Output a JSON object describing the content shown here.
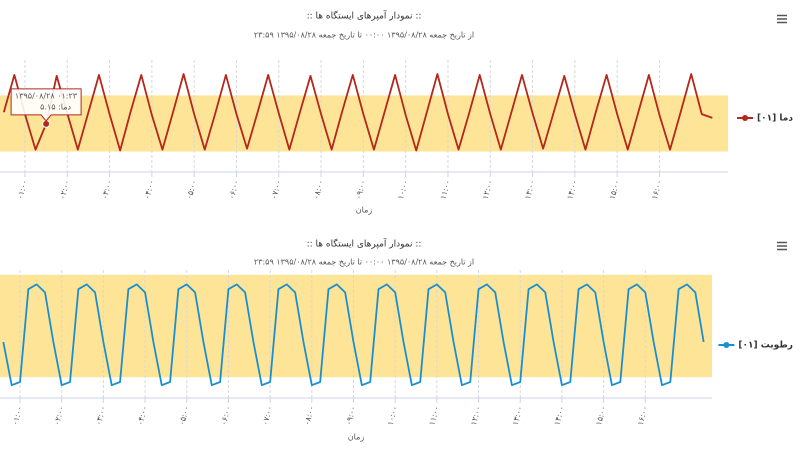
{
  "chart_data": [
    {
      "type": "line",
      "title": ":: نمودار آمپرهای ایستگاه ها ::",
      "subtitle": "از تاریخ جمعه ۱۳۹۵/۰۸/۲۸ ۰۰:۰۰ تا تاریخ جمعه ۱۳۹۵/۰۸/۲۸ ۲۳:۵۹",
      "x_title": "زمان",
      "xlim": [
        0.41,
        17.62
      ],
      "ylim": [
        0,
        12
      ],
      "grid": true,
      "xticks": [
        {
          "value": 1,
          "label": "۰۱:۰۰"
        },
        {
          "value": 2,
          "label": "۰۲:۰۰"
        },
        {
          "value": 3,
          "label": "۰۳:۰۰"
        },
        {
          "value": 4,
          "label": "۰۴:۰۰"
        },
        {
          "value": 5,
          "label": "۰۵:۰۰"
        },
        {
          "value": 6,
          "label": "۰۶:۰۰"
        },
        {
          "value": 7,
          "label": "۰۷:۰۰"
        },
        {
          "value": 8,
          "label": "۰۸:۰۰"
        },
        {
          "value": 9,
          "label": "۰۹:۰۰"
        },
        {
          "value": 10,
          "label": "۱۰:۰۰"
        },
        {
          "value": 11,
          "label": "۱۱:۰۰"
        },
        {
          "value": 12,
          "label": "۱۲:۰۰"
        },
        {
          "value": 13,
          "label": "۱۳:۰۰"
        },
        {
          "value": 14,
          "label": "۱۴:۰۰"
        },
        {
          "value": 15,
          "label": "۱۵:۰۰"
        },
        {
          "value": 16,
          "label": "۱۶:۰۰"
        }
      ],
      "plot_band": {
        "from": 2.2,
        "to": 8.2,
        "color": "#fde496"
      },
      "x": [
        0.5,
        0.75,
        1,
        1.25,
        1.5,
        1.75,
        2,
        2.25,
        2.5,
        2.75,
        3,
        3.25,
        3.5,
        3.75,
        4,
        4.25,
        4.5,
        4.75,
        5,
        5.25,
        5.5,
        5.75,
        6,
        6.25,
        6.5,
        6.75,
        7,
        7.25,
        7.5,
        7.75,
        8,
        8.25,
        8.5,
        8.75,
        9,
        9.25,
        9.5,
        9.75,
        10,
        10.25,
        10.5,
        10.75,
        11,
        11.25,
        11.5,
        11.75,
        12,
        12.25,
        12.5,
        12.75,
        13,
        13.25,
        13.5,
        13.75,
        14,
        14.25,
        14.5,
        14.75,
        15,
        15.25,
        15.5,
        15.75,
        16,
        16.25,
        16.5,
        16.75,
        17,
        17.25
      ],
      "series": [
        {
          "name": "دما [۰۱]",
          "color": "#b5261c",
          "values": [
            6.4,
            10.4,
            6.2,
            2.4,
            5.15,
            10.3,
            6.3,
            2.4,
            6.4,
            10.4,
            6.2,
            2.3,
            6.5,
            10.4,
            6.1,
            2.4,
            6.4,
            10.5,
            6.2,
            2.4,
            6.3,
            10.4,
            6.2,
            2.5,
            6.4,
            10.4,
            6.3,
            2.4,
            6.4,
            10.3,
            6.2,
            2.4,
            6.5,
            10.4,
            6.2,
            2.4,
            6.4,
            10.4,
            6.1,
            2.3,
            6.4,
            10.5,
            6.2,
            2.4,
            6.3,
            10.4,
            6.2,
            2.4,
            6.4,
            10.4,
            6.3,
            2.5,
            6.4,
            10.3,
            6.2,
            2.4,
            6.5,
            10.4,
            6.2,
            2.4,
            6.4,
            10.4,
            6.1,
            2.4,
            6.4,
            10.5,
            6.2,
            5.8
          ]
        }
      ],
      "tooltip": {
        "title": "۱۳۹۵/۰۸/۲۸ ۰۱:۲۳",
        "text": "دما: ۵.۱۵"
      }
    },
    {
      "type": "line",
      "title": ":: نمودار آمپرهای ایستگاه ها ::",
      "subtitle": "از تاریخ جمعه ۱۳۹۵/۰۸/۲۸ ۰۰:۰۰ تا تاریخ جمعه ۱۳۹۵/۰۸/۲۸ ۲۳:۵۹",
      "x_title": "زمان",
      "xlim": [
        0.52,
        17.6
      ],
      "ylim": [
        20,
        100
      ],
      "grid": true,
      "xticks": [
        {
          "value": 1,
          "label": "۰۱:۰۰"
        },
        {
          "value": 2,
          "label": "۰۲:۰۰"
        },
        {
          "value": 3,
          "label": "۰۳:۰۰"
        },
        {
          "value": 4,
          "label": "۰۴:۰۰"
        },
        {
          "value": 5,
          "label": "۰۵:۰۰"
        },
        {
          "value": 6,
          "label": "۰۶:۰۰"
        },
        {
          "value": 7,
          "label": "۰۷:۰۰"
        },
        {
          "value": 8,
          "label": "۰۸:۰۰"
        },
        {
          "value": 9,
          "label": "۰۹:۰۰"
        },
        {
          "value": 10,
          "label": "۱۰:۰۰"
        },
        {
          "value": 11,
          "label": "۱۱:۰۰"
        },
        {
          "value": 12,
          "label": "۱۲:۰۰"
        },
        {
          "value": 13,
          "label": "۱۳:۰۰"
        },
        {
          "value": 14,
          "label": "۱۴:۰۰"
        },
        {
          "value": 15,
          "label": "۱۵:۰۰"
        },
        {
          "value": 16,
          "label": "۱۶:۰۰"
        }
      ],
      "plot_band": {
        "from": 33,
        "to": 97,
        "color": "#fde496"
      },
      "x": [
        0.6,
        0.8,
        1,
        1.2,
        1.4,
        1.6,
        1.8,
        2,
        2.2,
        2.4,
        2.6,
        2.8,
        3,
        3.2,
        3.4,
        3.6,
        3.8,
        4,
        4.2,
        4.4,
        4.6,
        4.8,
        5,
        5.2,
        5.4,
        5.6,
        5.8,
        6,
        6.2,
        6.4,
        6.6,
        6.8,
        7,
        7.2,
        7.4,
        7.6,
        7.8,
        8,
        8.2,
        8.4,
        8.6,
        8.8,
        9,
        9.2,
        9.4,
        9.6,
        9.8,
        10,
        10.2,
        10.4,
        10.6,
        10.8,
        11,
        11.2,
        11.4,
        11.6,
        11.8,
        12,
        12.2,
        12.4,
        12.6,
        12.8,
        13,
        13.2,
        13.4,
        13.6,
        13.8,
        14,
        14.2,
        14.4,
        14.6,
        14.8,
        15,
        15.2,
        15.4,
        15.6,
        15.8,
        16,
        16.2,
        16.4,
        16.6,
        16.8,
        17,
        17.2,
        17.4
      ],
      "series": [
        {
          "name": "رطوبت [۰۱]",
          "color": "#1a8fd0",
          "values": [
            55,
            28,
            30,
            88,
            91,
            86,
            55,
            28,
            30,
            88,
            91,
            86,
            55,
            28,
            30,
            88,
            91,
            86,
            55,
            28,
            30,
            88,
            91,
            86,
            55,
            28,
            30,
            88,
            91,
            86,
            55,
            28,
            30,
            88,
            91,
            86,
            55,
            28,
            30,
            88,
            91,
            86,
            55,
            28,
            30,
            88,
            91,
            86,
            55,
            28,
            30,
            88,
            91,
            86,
            55,
            28,
            30,
            88,
            91,
            86,
            55,
            28,
            30,
            88,
            91,
            86,
            55,
            28,
            30,
            88,
            91,
            86,
            55,
            28,
            30,
            88,
            91,
            86,
            55,
            28,
            30,
            88,
            91,
            86,
            55
          ]
        }
      ]
    }
  ]
}
